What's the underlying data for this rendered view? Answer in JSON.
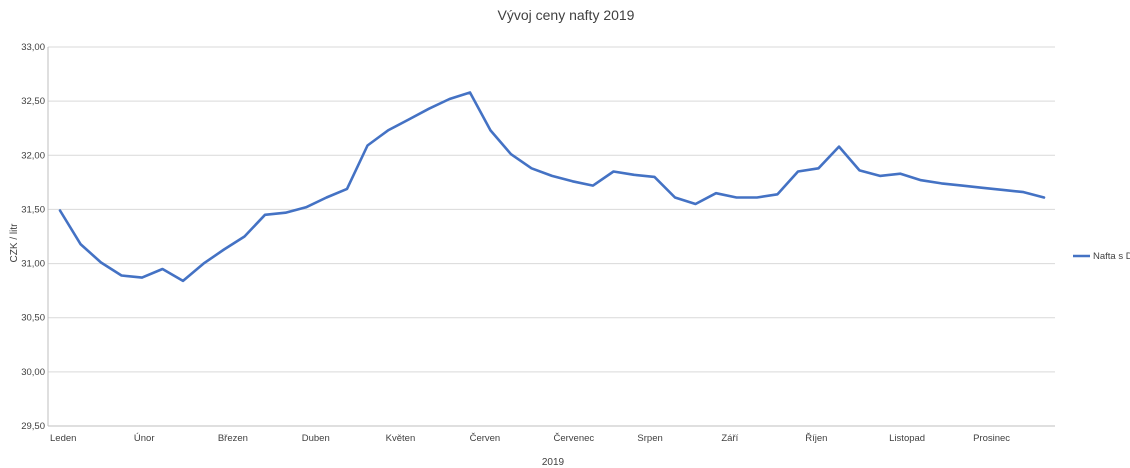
{
  "chart_data": {
    "type": "line",
    "title": "Vývoj ceny nafty 2019",
    "xlabel": "2019",
    "ylabel": "CZK / litr",
    "ylim": [
      29.5,
      33.0
    ],
    "y_ticks": [
      "33,00",
      "32,50",
      "32,00",
      "31,50",
      "31,00",
      "30,50",
      "30,00",
      "29,50"
    ],
    "x_tick_labels": [
      "Leden",
      "Únor",
      "Březen",
      "Duben",
      "Květen",
      "Červen",
      "Červenec",
      "Srpen",
      "Září",
      "Říjen",
      "Listopad",
      "Prosinec"
    ],
    "grid": true,
    "legend_position": "right",
    "series": [
      {
        "name": "Nafta s DPH",
        "color": "#4472c4",
        "values": [
          31.49,
          31.18,
          31.01,
          30.89,
          30.87,
          30.95,
          30.84,
          31.0,
          31.13,
          31.25,
          31.45,
          31.47,
          31.52,
          31.61,
          31.69,
          32.09,
          32.23,
          32.33,
          32.43,
          32.52,
          32.58,
          32.23,
          32.01,
          31.88,
          31.81,
          31.76,
          31.72,
          31.85,
          31.82,
          31.8,
          31.61,
          31.55,
          31.65,
          31.61,
          31.61,
          31.64,
          31.85,
          31.88,
          32.08,
          31.86,
          31.81,
          31.83,
          31.77,
          31.74,
          31.72,
          31.7,
          31.68,
          31.66,
          31.61
        ]
      }
    ]
  }
}
